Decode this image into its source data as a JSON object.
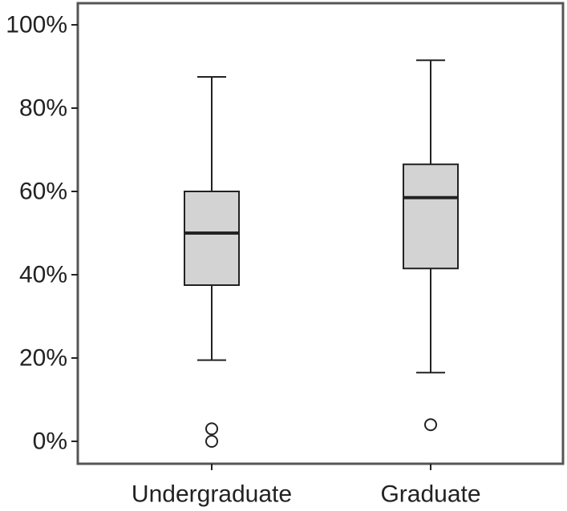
{
  "chart_data": {
    "type": "boxplot",
    "categories": [
      "Undergraduate",
      "Graduate"
    ],
    "boxes": [
      {
        "category": "Undergraduate",
        "whisker_low": 19.5,
        "q1": 37.5,
        "median": 50,
        "q3": 60,
        "whisker_high": 87.5,
        "outliers": [
          0,
          3
        ]
      },
      {
        "category": "Graduate",
        "whisker_low": 16.5,
        "q1": 41.5,
        "median": 58.5,
        "q3": 66.5,
        "whisker_high": 91.5,
        "outliers": [
          4
        ]
      }
    ],
    "y_ticks": [
      0,
      20,
      40,
      60,
      80,
      100
    ],
    "y_tick_labels": [
      "0%",
      "20%",
      "40%",
      "60%",
      "80%",
      "100%"
    ],
    "ylim": [
      -5,
      105
    ],
    "title": "",
    "xlabel": "",
    "ylabel": "",
    "grid": false,
    "colors": {
      "box_fill": "#d3d3d3",
      "stroke": "#222222",
      "background": "#ffffff"
    }
  }
}
